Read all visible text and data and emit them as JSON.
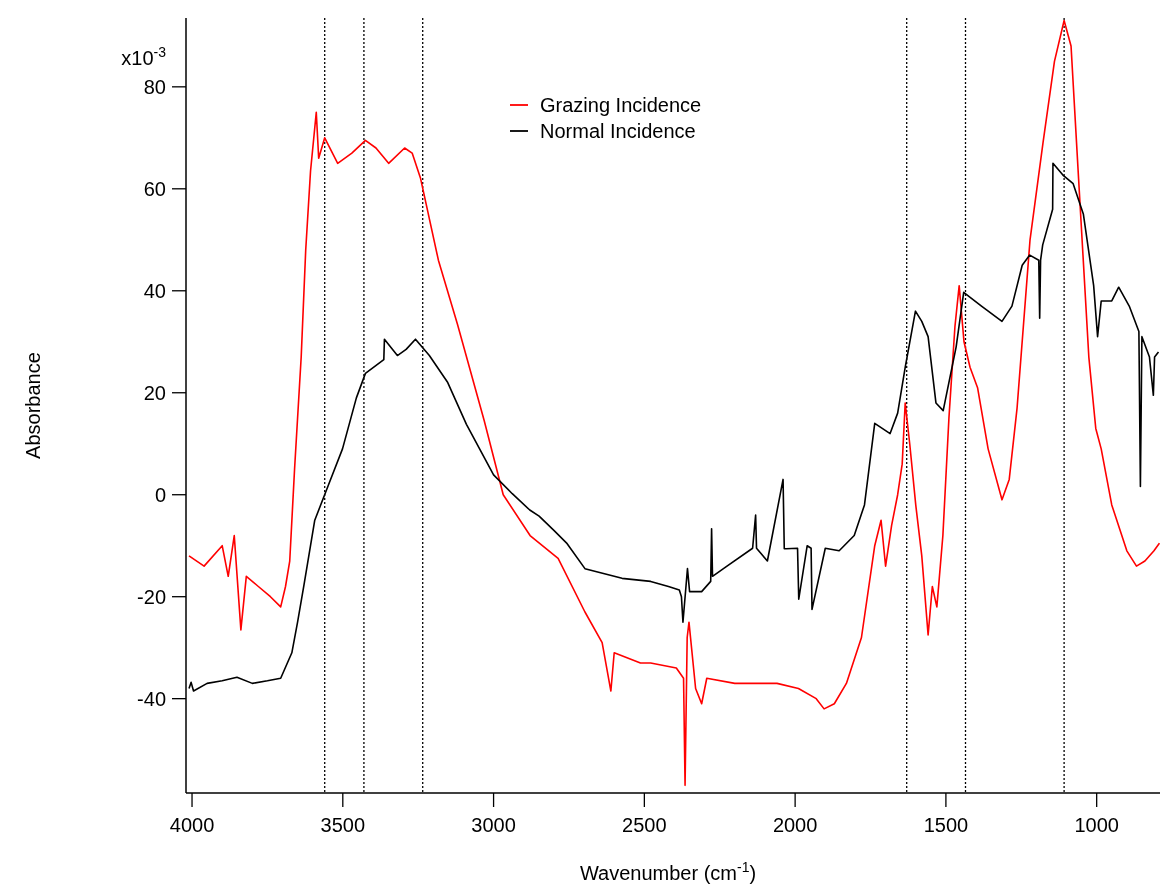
{
  "chart_data": {
    "type": "line",
    "xlabel": "Wavenumber (cm$^{-1}$)",
    "ylabel": "Absorbance",
    "xlim": [
      4020,
      790
    ],
    "xticks": [
      4000,
      3500,
      3000,
      2500,
      2000,
      1500,
      1000
    ],
    "ylim": [
      -58.5,
      93.5
    ],
    "yticks": [
      80,
      60,
      40,
      20,
      0,
      -20,
      -40
    ],
    "annotations": [
      "x10$^{-3}$"
    ],
    "legend": "top",
    "ref_lines": [
      {
        "axis": "x",
        "value": 3560,
        "color": "#000000",
        "line_style": "dotted"
      },
      {
        "axis": "x",
        "value": 3430,
        "color": "#000000",
        "line_style": "dotted"
      },
      {
        "axis": "x",
        "value": 3235,
        "color": "#000000",
        "line_style": "dotted"
      },
      {
        "axis": "x",
        "value": 1630,
        "color": "#000000",
        "line_style": "dotted"
      },
      {
        "axis": "x",
        "value": 1435,
        "color": "#000000",
        "line_style": "dotted"
      },
      {
        "axis": "x",
        "value": 1108,
        "color": "#000000",
        "line_style": "dotted"
      }
    ],
    "series": [
      {
        "name": "Grazing Incidence",
        "color": "#ff0000",
        "x": [
          4010,
          3960,
          3900,
          3880,
          3860,
          3838,
          3820,
          3780,
          3740,
          3706,
          3690,
          3676,
          3660,
          3638,
          3623,
          3607,
          3588,
          3580,
          3560,
          3517,
          3470,
          3425,
          3390,
          3348,
          3295,
          3270,
          3242,
          3183,
          3120,
          3031,
          2968,
          2879,
          2786,
          2697,
          2640,
          2611,
          2600,
          2513,
          2479,
          2394,
          2370,
          2365,
          2358,
          2352,
          2330,
          2310,
          2293,
          2200,
          2141,
          2060,
          1989,
          1930,
          1904,
          1870,
          1830,
          1780,
          1736,
          1715,
          1700,
          1680,
          1660,
          1645,
          1635,
          1620,
          1600,
          1580,
          1559,
          1545,
          1530,
          1510,
          1490,
          1470,
          1456,
          1440,
          1420,
          1395,
          1360,
          1314,
          1290,
          1264,
          1221,
          1178,
          1140,
          1108,
          1085,
          1060,
          1026,
          1003,
          985,
          950,
          900,
          868,
          840,
          810,
          792
        ],
        "values": [
          -12,
          -14,
          -10,
          -16,
          -8,
          -26.5,
          -16,
          -18,
          -20,
          -22,
          -18,
          -13,
          5,
          27,
          48,
          63.5,
          75,
          66,
          70,
          65,
          67,
          69.5,
          68,
          65,
          68,
          67,
          62,
          46,
          33.5,
          14.5,
          0,
          -8,
          -12.5,
          -23,
          -29,
          -38.5,
          -31,
          -33,
          -33,
          -34,
          -36,
          -57,
          -28,
          -25,
          -38,
          -41,
          -36,
          -37,
          -37,
          -37,
          -38,
          -40,
          -42,
          -41,
          -37,
          -28,
          -10,
          -5,
          -14,
          -6,
          0,
          6,
          18,
          10,
          -2,
          -12,
          -27.5,
          -18,
          -22,
          -8,
          15,
          33,
          41,
          30,
          25,
          21,
          9,
          -1,
          3,
          17,
          50,
          69,
          85,
          93,
          88,
          62,
          27,
          13,
          9,
          -2,
          -11,
          -14,
          -13,
          -11,
          -9.5
        ]
      },
      {
        "name": "Normal Incidence",
        "color": "#000000",
        "x": [
          4010,
          4003,
          3995,
          3950,
          3900,
          3851,
          3800,
          3750,
          3706,
          3669,
          3650,
          3629,
          3593,
          3547,
          3501,
          3455,
          3425,
          3364,
          3362,
          3319,
          3290,
          3259,
          3213,
          3152,
          3090,
          3000,
          2938,
          2880,
          2849,
          2800,
          2756,
          2697,
          2574,
          2479,
          2420,
          2384,
          2377,
          2372,
          2357,
          2350,
          2310,
          2280,
          2277,
          2274,
          2226,
          2141,
          2131,
          2128,
          2092,
          2040,
          2036,
          2030,
          1992,
          1988,
          1960,
          1947,
          1944,
          1900,
          1854,
          1804,
          1770,
          1736,
          1685,
          1660,
          1635,
          1601,
          1580,
          1559,
          1533,
          1509,
          1466,
          1441,
          1382,
          1314,
          1281,
          1247,
          1222,
          1192,
          1189,
          1186,
          1179,
          1146,
          1145,
          1112,
          1078,
          1044,
          1010,
          997,
          985,
          950,
          927,
          892,
          860,
          855,
          850,
          825,
          812,
          808,
          795
        ],
        "values": [
          -38,
          -36.8,
          -38.5,
          -37,
          -36.5,
          -35.8,
          -37,
          -36.5,
          -36,
          -31,
          -25,
          -17.8,
          -5,
          2,
          9,
          19,
          23.8,
          26.5,
          30.5,
          27.3,
          28.5,
          30.5,
          27.3,
          22,
          13.8,
          3.9,
          0.2,
          -3,
          -4.2,
          -7,
          -9.6,
          -14.5,
          -16.4,
          -17,
          -18,
          -18.7,
          -20,
          -25,
          -14.5,
          -19,
          -19,
          -17,
          -6.7,
          -16,
          -14,
          -10.5,
          -4,
          -10.5,
          -13,
          3,
          -10.6,
          -10.6,
          -10.5,
          -20.5,
          -10,
          -10.5,
          -22.5,
          -10.5,
          -11,
          -8,
          -2,
          14,
          12,
          16,
          25,
          36,
          34,
          31,
          18,
          16.5,
          29,
          39.7,
          37,
          34,
          37,
          45,
          47,
          46,
          34.6,
          46,
          49,
          56,
          65,
          62.7,
          61,
          55,
          41,
          31,
          38,
          38,
          40.7,
          37,
          32,
          1.6,
          31,
          27,
          19.5,
          27,
          28
        ]
      }
    ]
  }
}
